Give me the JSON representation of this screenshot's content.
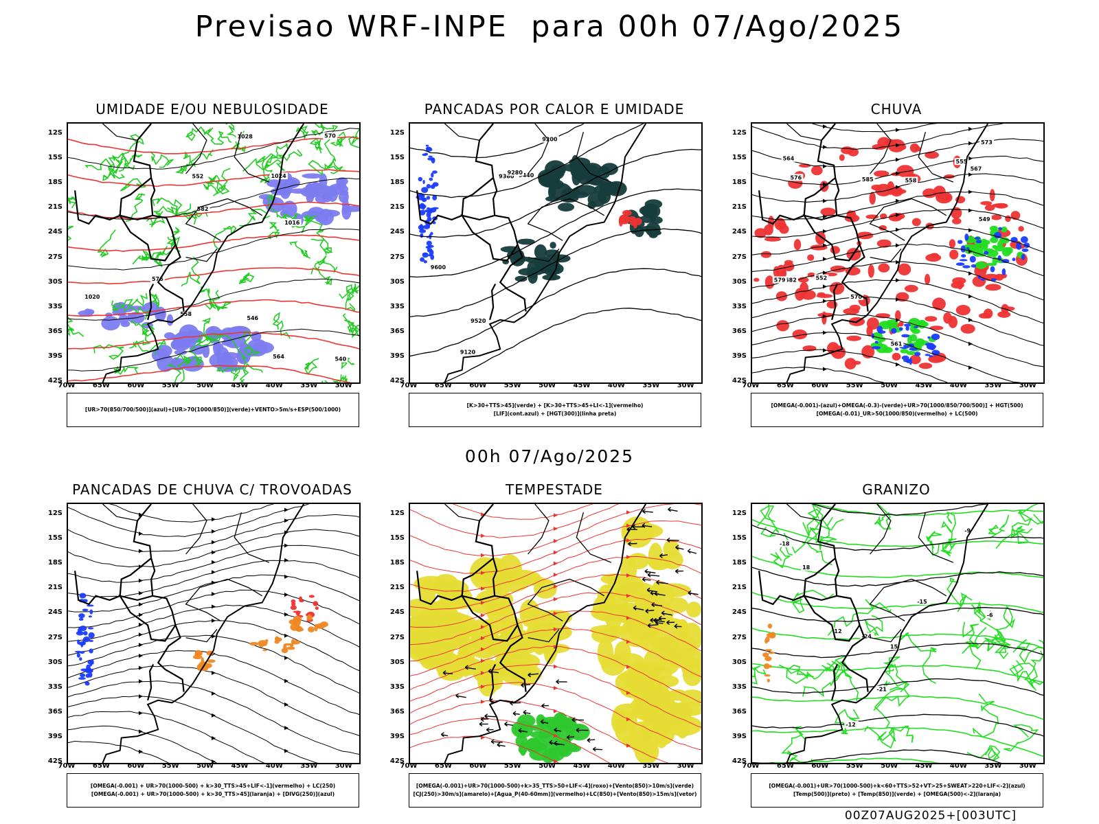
{
  "title": "Previsao WRF-INPE  para 00h 07/Ago/2025",
  "subtitle": "00h 07/Ago/2025",
  "footer": "00Z07AUG2025+[003UTC]",
  "axes": {
    "lat_ticks": [
      "12S",
      "15S",
      "18S",
      "21S",
      "24S",
      "27S",
      "30S",
      "33S",
      "36S",
      "39S",
      "42S"
    ],
    "lon_ticks": [
      "70W",
      "65W",
      "60W",
      "55W",
      "50W",
      "45W",
      "40W",
      "35W",
      "30W"
    ]
  },
  "chart_data": [
    {
      "type": "map",
      "title": "UMIDADE E/OU NEBULOSIDADE",
      "legend": [
        "[UR>70(850/700/500)](azul)+[UR>70(1000/850)](verde)+VENTO>5m/s+ESP(500/1000)"
      ],
      "colors": {
        "humidity_upper": "#7c7cf0",
        "humidity_lower": "#22cc22",
        "thickness": "#ee3333",
        "pressure": "#000000"
      },
      "contour_labels": [
        "1016",
        "1020",
        "1024",
        "1028",
        "540",
        "546",
        "552",
        "558",
        "564",
        "570",
        "576",
        "582"
      ]
    },
    {
      "type": "map",
      "title": "PANCADAS POR CALOR E UMIDADE",
      "legend": [
        "[K>30+TTS>45](verde) + [K>30+TTS>45+LI<-1](vermelho)",
        "[LIF](cont.azul) + [HGT(300)](linha preta)"
      ],
      "colors": {
        "fill": "#163c3c",
        "red": "#ee3333",
        "blue": "#1a3cff"
      },
      "contour_labels": [
        "9600",
        "9520",
        "9440",
        "9360",
        "9280",
        "9200",
        "9120"
      ]
    },
    {
      "type": "map",
      "title": "CHUVA",
      "legend": [
        "[OMEGA(-0.001)-(azul)+OMEGA(-0.3)-(verde)+UR>70(1000/850/700/500)] + HGT(500)",
        "[OMEGA(-0.01)_UR>50(1000/850)(vermelho) + LC(500)"
      ],
      "colors": {
        "red": "#ee3333",
        "blue": "#1a3cff",
        "green": "#22dd22"
      },
      "contour_labels": [
        "585",
        "582",
        "579",
        "576",
        "573",
        "570",
        "567",
        "564",
        "561",
        "558",
        "555",
        "552",
        "549"
      ]
    },
    {
      "type": "map",
      "title": "PANCADAS DE CHUVA C/ TROVOADAS",
      "legend": [
        "[OMEGA(-0.001) + UR>70(1000-500) + k>30_TTS>45+LIF<-1](vermelho) + LC(250)",
        "[OMEGA(-0.001) + UR>70(1000-500) + k>30_TTS>45](laranja) + [DIVG(250)](azul)"
      ],
      "colors": {
        "red": "#ee3333",
        "orange": "#ee8822",
        "blue": "#1a3cff"
      }
    },
    {
      "type": "map",
      "title": "TEMPESTADE",
      "legend": [
        "[OMEGA(-0.001)+UR>70(1000-500)+k>35_TTS>50+LIF<-4](roxo)+[Vento(850)>10m/s](verde)",
        "[CJ(250)>30m/s](amarelo)+[Agua_P(40-60mm)](vermelho)+LC(850)+[Vento(850)>15m/s](vetor)"
      ],
      "colors": {
        "yellow": "#e6dc35",
        "green": "#2ec82e",
        "red": "#ee3333"
      }
    },
    {
      "type": "map",
      "title": "GRANIZO",
      "legend": [
        "[OMEGA(-0.001)+UR>70(1000-500)+k<60+TTS>52+VT>25+SWEAT>220+LIF<-2](azul)",
        "[Temp(500)](preto) + [Temp(850)](verde) + [OMEGA(500)<-2](laranja)"
      ],
      "colors": {
        "green": "#22dd22",
        "orange": "#ee8822"
      },
      "contour_labels": [
        "-6",
        "-9",
        "-12",
        "-15",
        "-18",
        "-21",
        "-24",
        "12",
        "15",
        "18"
      ]
    }
  ]
}
